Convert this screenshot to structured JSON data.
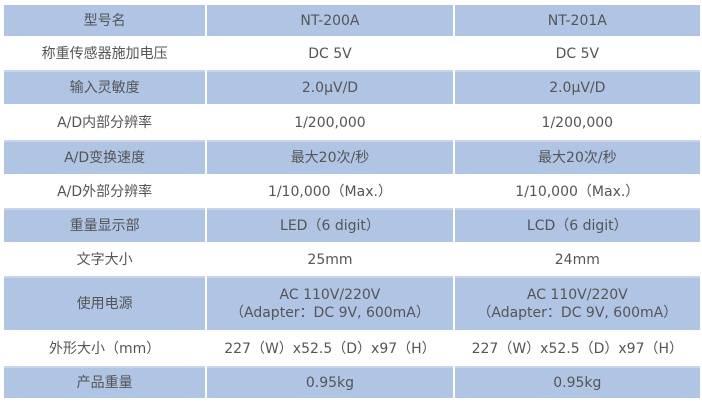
{
  "colors": {
    "row_blue": "#b0c4e4",
    "text": "#555555"
  },
  "header": [
    "型号名",
    "NT-200A",
    "NT-201A"
  ],
  "rows": [
    [
      "称重传感器施加电压",
      "DC 5V",
      "DC 5V"
    ],
    [
      "输入灵敏度",
      "2.0μV/D",
      "2.0μV/D"
    ],
    [
      "A/D内部分辨率",
      "1/200,000",
      "1/200,000"
    ],
    [
      "A/D变换速度",
      "最大20次/秒",
      "最大20次/秒"
    ],
    [
      "A/D外部分辨率",
      "1/10,000（Max.）",
      "1/10,000（Max.）"
    ],
    [
      "重量显示部",
      "LED（6 digit）",
      "LCD（6 digit）"
    ],
    [
      "文字大小",
      "25mm",
      "24mm"
    ],
    [
      "使用电源",
      "AC 110V/220V|（Adapter：DC 9V, 600mA）",
      "AC 110V/220V|（Adapter：DC 9V, 600mA）"
    ],
    [
      "外形大小（mm）",
      "227（W）x52.5（D）x97（H）",
      "227（W）x52.5（D）x97（H）"
    ],
    [
      "产品重量",
      "0.95kg",
      "0.95kg"
    ]
  ]
}
